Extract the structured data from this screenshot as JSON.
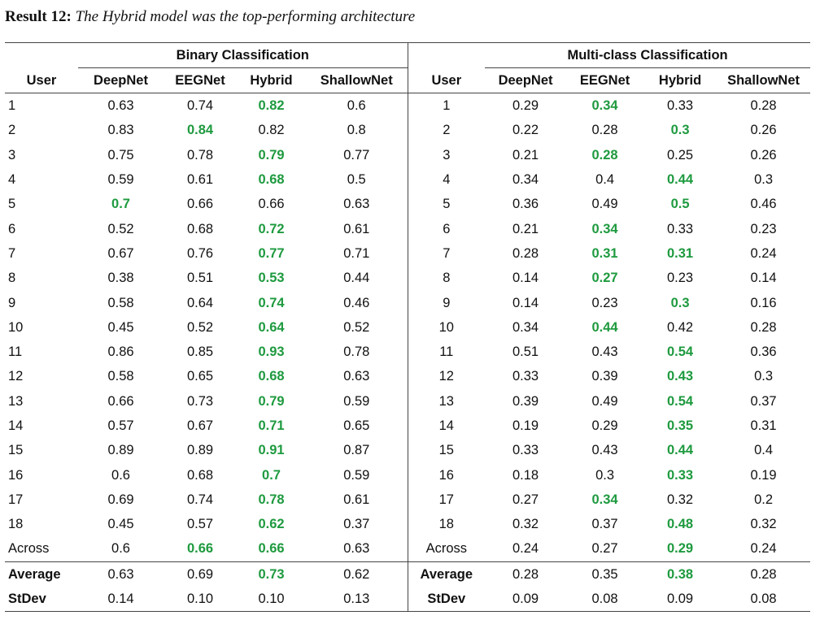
{
  "caption": {
    "label": "Result 12:",
    "text": "The Hybrid model was the top-performing architecture"
  },
  "table": {
    "binary_group": "Binary Classification",
    "multi_group": "Multi-class Classification",
    "columns": [
      "User",
      "DeepNet",
      "EEGNet",
      "Hybrid",
      "ShallowNet"
    ],
    "highlight_color": "#1e9a3f",
    "rows": [
      {
        "user": "1",
        "b": [
          "0.63",
          "0.74",
          "0.82",
          "0.6"
        ],
        "bh": [
          2
        ],
        "m": [
          "0.29",
          "0.34",
          "0.33",
          "0.28"
        ],
        "mh": [
          1
        ]
      },
      {
        "user": "2",
        "b": [
          "0.83",
          "0.84",
          "0.82",
          "0.8"
        ],
        "bh": [
          1
        ],
        "m": [
          "0.22",
          "0.28",
          "0.3",
          "0.26"
        ],
        "mh": [
          2
        ]
      },
      {
        "user": "3",
        "b": [
          "0.75",
          "0.78",
          "0.79",
          "0.77"
        ],
        "bh": [
          2
        ],
        "m": [
          "0.21",
          "0.28",
          "0.25",
          "0.26"
        ],
        "mh": [
          1
        ]
      },
      {
        "user": "4",
        "b": [
          "0.59",
          "0.61",
          "0.68",
          "0.5"
        ],
        "bh": [
          2
        ],
        "m": [
          "0.34",
          "0.4",
          "0.44",
          "0.3"
        ],
        "mh": [
          2
        ]
      },
      {
        "user": "5",
        "b": [
          "0.7",
          "0.66",
          "0.66",
          "0.63"
        ],
        "bh": [
          0
        ],
        "m": [
          "0.36",
          "0.49",
          "0.5",
          "0.46"
        ],
        "mh": [
          2
        ]
      },
      {
        "user": "6",
        "b": [
          "0.52",
          "0.68",
          "0.72",
          "0.61"
        ],
        "bh": [
          2
        ],
        "m": [
          "0.21",
          "0.34",
          "0.33",
          "0.23"
        ],
        "mh": [
          1
        ]
      },
      {
        "user": "7",
        "b": [
          "0.67",
          "0.76",
          "0.77",
          "0.71"
        ],
        "bh": [
          2
        ],
        "m": [
          "0.28",
          "0.31",
          "0.31",
          "0.24"
        ],
        "mh": [
          1,
          2
        ]
      },
      {
        "user": "8",
        "b": [
          "0.38",
          "0.51",
          "0.53",
          "0.44"
        ],
        "bh": [
          2
        ],
        "m": [
          "0.14",
          "0.27",
          "0.23",
          "0.14"
        ],
        "mh": [
          1
        ]
      },
      {
        "user": "9",
        "b": [
          "0.58",
          "0.64",
          "0.74",
          "0.46"
        ],
        "bh": [
          2
        ],
        "m": [
          "0.14",
          "0.23",
          "0.3",
          "0.16"
        ],
        "mh": [
          2
        ]
      },
      {
        "user": "10",
        "b": [
          "0.45",
          "0.52",
          "0.64",
          "0.52"
        ],
        "bh": [
          2
        ],
        "m": [
          "0.34",
          "0.44",
          "0.42",
          "0.28"
        ],
        "mh": [
          1
        ]
      },
      {
        "user": "11",
        "b": [
          "0.86",
          "0.85",
          "0.93",
          "0.78"
        ],
        "bh": [
          2
        ],
        "m": [
          "0.51",
          "0.43",
          "0.54",
          "0.36"
        ],
        "mh": [
          2
        ]
      },
      {
        "user": "12",
        "b": [
          "0.58",
          "0.65",
          "0.68",
          "0.63"
        ],
        "bh": [
          2
        ],
        "m": [
          "0.33",
          "0.39",
          "0.43",
          "0.3"
        ],
        "mh": [
          2
        ]
      },
      {
        "user": "13",
        "b": [
          "0.66",
          "0.73",
          "0.79",
          "0.59"
        ],
        "bh": [
          2
        ],
        "m": [
          "0.39",
          "0.49",
          "0.54",
          "0.37"
        ],
        "mh": [
          2
        ]
      },
      {
        "user": "14",
        "b": [
          "0.57",
          "0.67",
          "0.71",
          "0.65"
        ],
        "bh": [
          2
        ],
        "m": [
          "0.19",
          "0.29",
          "0.35",
          "0.31"
        ],
        "mh": [
          2
        ]
      },
      {
        "user": "15",
        "b": [
          "0.89",
          "0.89",
          "0.91",
          "0.87"
        ],
        "bh": [
          2
        ],
        "m": [
          "0.33",
          "0.43",
          "0.44",
          "0.4"
        ],
        "mh": [
          2
        ]
      },
      {
        "user": "16",
        "b": [
          "0.6",
          "0.68",
          "0.7",
          "0.59"
        ],
        "bh": [
          2
        ],
        "m": [
          "0.18",
          "0.3",
          "0.33",
          "0.19"
        ],
        "mh": [
          2
        ]
      },
      {
        "user": "17",
        "b": [
          "0.69",
          "0.74",
          "0.78",
          "0.61"
        ],
        "bh": [
          2
        ],
        "m": [
          "0.27",
          "0.34",
          "0.32",
          "0.2"
        ],
        "mh": [
          1
        ]
      },
      {
        "user": "18",
        "b": [
          "0.45",
          "0.57",
          "0.62",
          "0.37"
        ],
        "bh": [
          2
        ],
        "m": [
          "0.32",
          "0.37",
          "0.48",
          "0.32"
        ],
        "mh": [
          2
        ]
      },
      {
        "user": "Across",
        "b": [
          "0.6",
          "0.66",
          "0.66",
          "0.63"
        ],
        "bh": [
          1,
          2
        ],
        "m": [
          "0.24",
          "0.27",
          "0.29",
          "0.24"
        ],
        "mh": [
          2
        ]
      }
    ],
    "summary": [
      {
        "user": "Average",
        "b": [
          "0.63",
          "0.69",
          "0.73",
          "0.62"
        ],
        "bh": [
          2
        ],
        "m": [
          "0.28",
          "0.35",
          "0.38",
          "0.28"
        ],
        "mh": [
          2
        ]
      },
      {
        "user": "StDev",
        "b": [
          "0.14",
          "0.10",
          "0.10",
          "0.13"
        ],
        "bh": [],
        "m": [
          "0.09",
          "0.08",
          "0.09",
          "0.08"
        ],
        "mh": []
      }
    ]
  }
}
